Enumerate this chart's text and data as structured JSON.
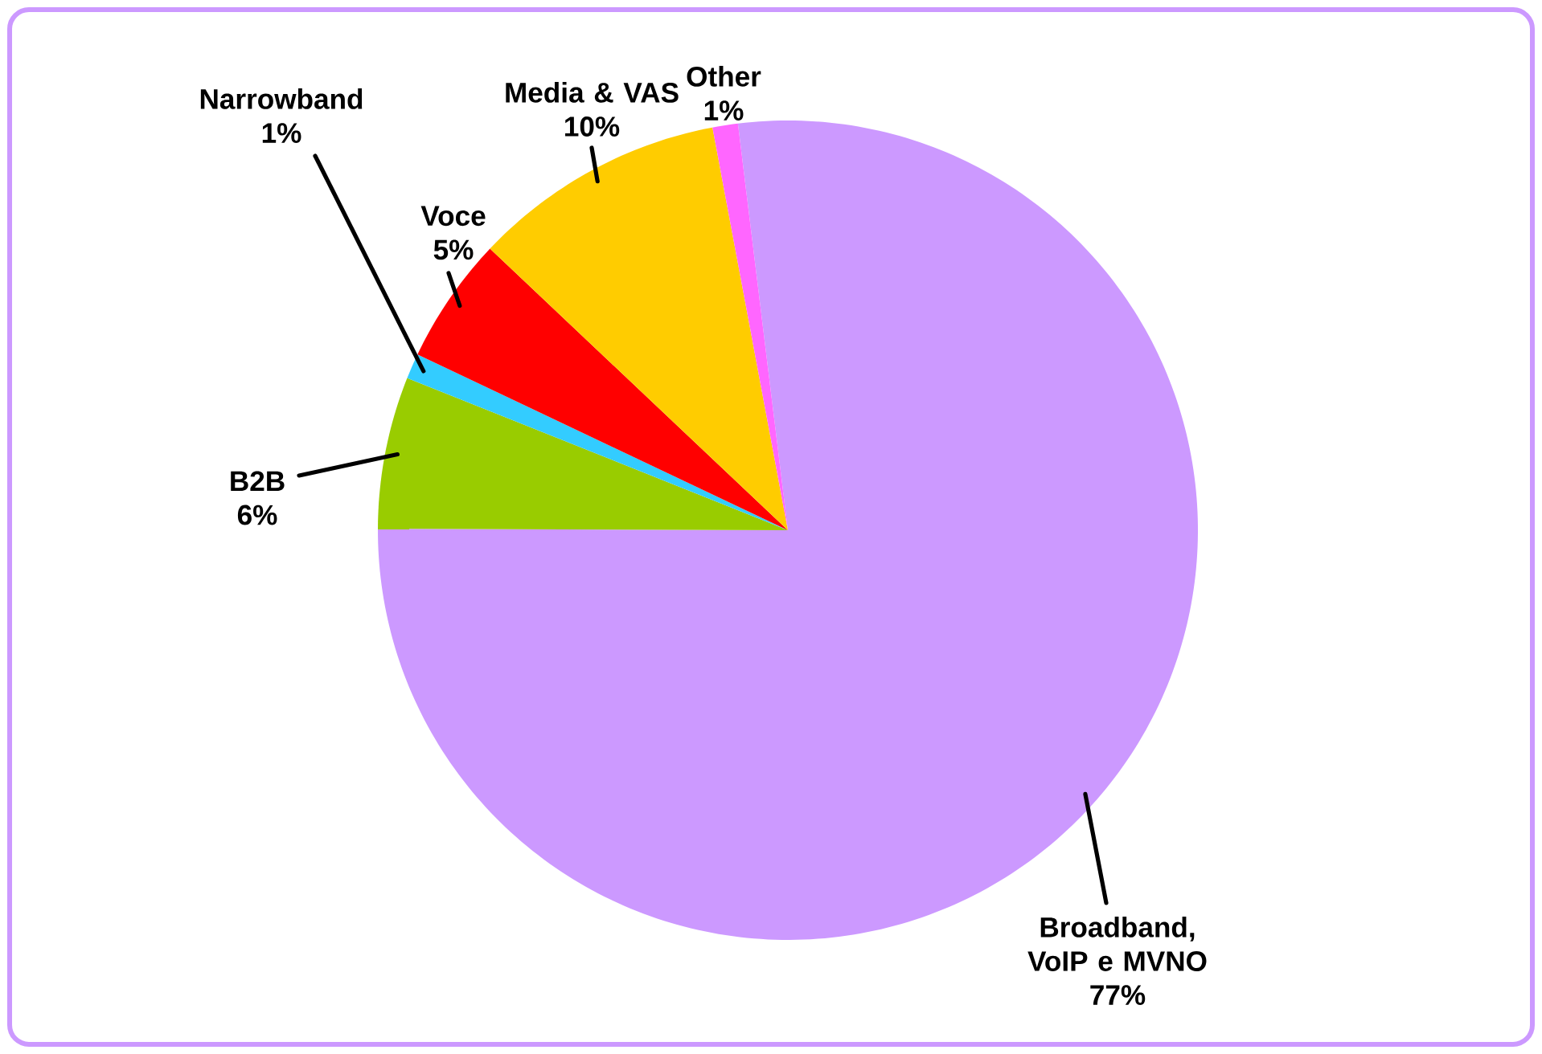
{
  "chart_data": {
    "type": "pie",
    "categories": [
      "Broadband, VoIP e MVNO",
      "B2B",
      "Narrowband",
      "Voce",
      "Media & VAS",
      "Other"
    ],
    "values": [
      77,
      6,
      1,
      5,
      10,
      1
    ],
    "value_labels": [
      "77%",
      "6%",
      "1%",
      "5%",
      "10%",
      "1%"
    ],
    "colors": [
      "#cc99ff",
      "#99cc00",
      "#33ccff",
      "#ff0000",
      "#ffcc00",
      "#ff66ff"
    ]
  }
}
